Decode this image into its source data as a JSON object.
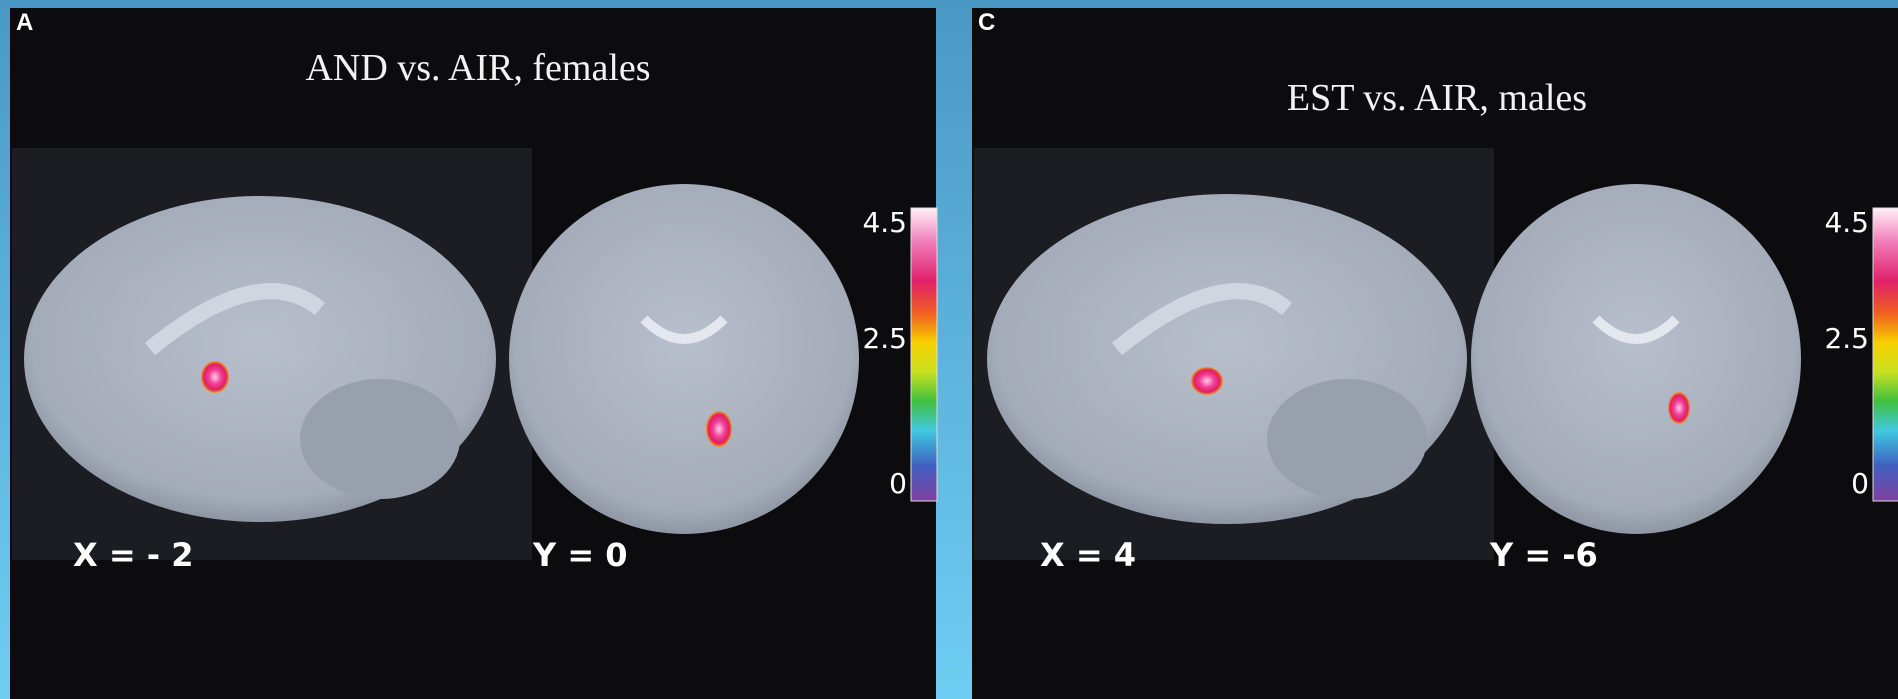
{
  "panels": [
    {
      "label": "A",
      "title": "AND vs. AIR, females",
      "colorbar": {
        "ticks": [
          4.5,
          2.5,
          0
        ]
      },
      "slices": [
        {
          "label": "X = - 2"
        },
        {
          "label": "Y = 0"
        }
      ]
    },
    {
      "label": "C",
      "title": "EST vs. AIR, males",
      "colorbar": {
        "ticks": [
          4.5,
          2.5,
          0
        ]
      },
      "slices": [
        {
          "label": "X = 4"
        },
        {
          "label": "Y = -6"
        }
      ]
    }
  ]
}
